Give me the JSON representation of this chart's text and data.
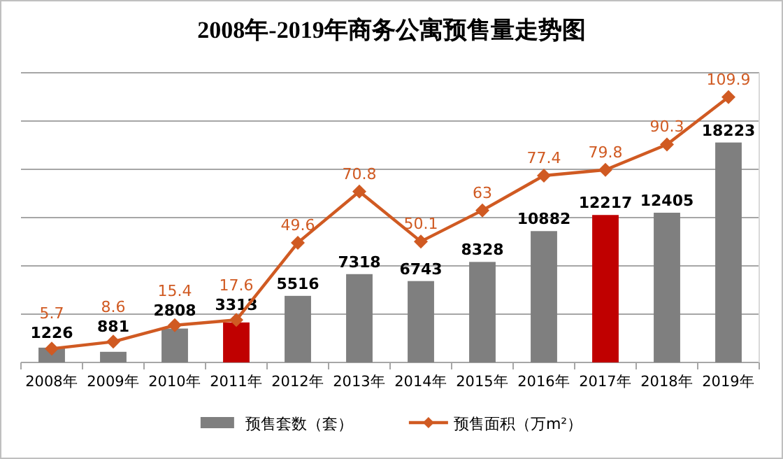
{
  "chart_data": {
    "type": "bar",
    "title": "2008年-2019年商务公寓预售量走势图",
    "categories": [
      "2008年",
      "2009年",
      "2010年",
      "2011年",
      "2012年",
      "2013年",
      "2014年",
      "2015年",
      "2016年",
      "2017年",
      "2018年",
      "2019年"
    ],
    "series": [
      {
        "name": "预售套数（套）",
        "color": "#7f7f7f",
        "colors": [
          "#7f7f7f",
          "#7f7f7f",
          "#7f7f7f",
          "#c00000",
          "#7f7f7f",
          "#7f7f7f",
          "#7f7f7f",
          "#7f7f7f",
          "#7f7f7f",
          "#c00000",
          "#7f7f7f",
          "#7f7f7f"
        ],
        "values": [
          1226,
          881,
          2808,
          3313,
          5516,
          7318,
          6743,
          8328,
          10882,
          12217,
          12405,
          18223
        ]
      },
      {
        "name": "预售面积（万m²）",
        "type": "line",
        "axis": "y2",
        "color": "#d05a22",
        "marker": "diamond",
        "values": [
          5.7,
          8.6,
          15.4,
          17.6,
          49.6,
          70.8,
          50.1,
          63,
          77.4,
          79.8,
          90.3,
          109.9
        ]
      }
    ],
    "ylim": [
      0,
      24000
    ],
    "yticks": [
      {
        "value": 0,
        "label": null
      },
      {
        "value": 4000,
        "label": null
      },
      {
        "value": 8000,
        "label": null
      },
      {
        "value": 12000,
        "label": null
      },
      {
        "value": 16000,
        "label": null
      },
      {
        "value": 20000,
        "label": null
      },
      {
        "value": 24000,
        "label": null
      }
    ],
    "y2lim": [
      0,
      120
    ],
    "tick_labels": "x",
    "grid": "y",
    "legend": "bottom",
    "data_labels": true
  }
}
